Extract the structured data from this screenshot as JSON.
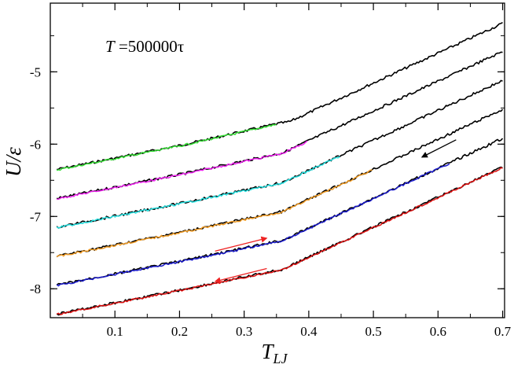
{
  "chart_data": {
    "type": "line",
    "title": "",
    "xlabel": "T",
    "xlabel_sub": "LJ",
    "ylabel": "U/ε",
    "xlim": [
      0.0,
      0.703
    ],
    "ylim": [
      -8.4,
      -4.05
    ],
    "xticks": [
      0.1,
      0.2,
      0.3,
      0.4,
      0.5,
      0.6,
      0.7
    ],
    "xtick_labels": [
      "0.1",
      "0.2",
      "0.3",
      "0.4",
      "0.5",
      "0.6",
      "0.7"
    ],
    "yticks": [
      -8,
      -7,
      -6,
      -5
    ],
    "ytick_labels": [
      "-8",
      "-7",
      "-6",
      "-5"
    ],
    "annotation": {
      "T_symbol": "T",
      "value": " =500000τ"
    },
    "series": [
      {
        "x": [
          0.01,
          0.2,
          0.35,
          0.37,
          0.7
        ],
        "y": [
          -6.35,
          -6.02,
          -5.72,
          -5.69,
          -4.33
        ],
        "color": "#000000",
        "colored_range": [
          0.01,
          0.35
        ],
        "colored": "#33dd33"
      },
      {
        "x": [
          0.01,
          0.2,
          0.36,
          0.4,
          0.7
        ],
        "y": [
          -6.75,
          -6.42,
          -6.12,
          -5.95,
          -4.72
        ],
        "color": "#000000",
        "colored_range": [
          0.01,
          0.4
        ],
        "colored": "#ee22ee"
      },
      {
        "x": [
          0.01,
          0.2,
          0.36,
          0.4,
          0.7
        ],
        "y": [
          -7.15,
          -6.82,
          -6.53,
          -6.36,
          -5.12
        ],
        "color": "#000000",
        "colored_range": [
          0.01,
          0.45
        ],
        "colored": "#22dddd"
      },
      {
        "x": [
          0.01,
          0.2,
          0.36,
          0.4,
          0.7
        ],
        "y": [
          -7.55,
          -7.22,
          -6.93,
          -6.76,
          -5.52
        ],
        "color": "#000000",
        "colored_range": [
          0.01,
          0.5
        ],
        "colored": "#ee9922"
      },
      {
        "x": [
          0.01,
          0.2,
          0.36,
          0.4,
          0.7
        ],
        "y": [
          -7.95,
          -7.62,
          -7.33,
          -7.16,
          -5.92
        ],
        "color": "#000000",
        "colored_range": [
          0.01,
          0.62
        ],
        "colored": "#1a1acc"
      },
      {
        "x": [
          0.01,
          0.2,
          0.36,
          0.4,
          0.7
        ],
        "y": [
          -8.35,
          -8.02,
          -7.73,
          -7.56,
          -6.32
        ],
        "color": "#000000",
        "colored_range": [
          0.01,
          0.7
        ],
        "colored": "#dd1111"
      }
    ],
    "arrows": [
      {
        "x": [
          0.255,
          0.335
        ],
        "y": [
          -7.48,
          -7.3
        ],
        "color": "#ee2222"
      },
      {
        "x": [
          0.335,
          0.255
        ],
        "y": [
          -7.72,
          -7.9
        ],
        "color": "#ee2222"
      },
      {
        "x": [
          0.628,
          0.575
        ],
        "y": [
          -5.94,
          -6.18
        ],
        "color": "#000000"
      }
    ]
  }
}
